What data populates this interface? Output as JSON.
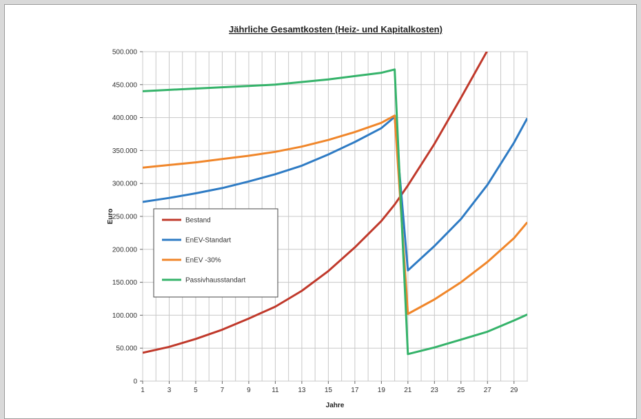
{
  "chart_data": {
    "type": "line",
    "title": "Jährliche Gesamtkosten (Heiz- und Kapitalkosten)",
    "xlabel": "Jahre",
    "ylabel": "Euro",
    "xlim": [
      1,
      30
    ],
    "ylim": [
      0,
      500000
    ],
    "x_ticks": [
      "1",
      "3",
      "5",
      "7",
      "9",
      "11",
      "13",
      "15",
      "17",
      "19",
      "21",
      "23",
      "25",
      "27",
      "29"
    ],
    "y_ticks": [
      "0",
      "50.000",
      "100.000",
      "150.000",
      "200.000",
      "250.000",
      "300.000",
      "350.000",
      "400.000",
      "450.000",
      "500.000"
    ],
    "grid": true,
    "legend_position": "left-middle",
    "series": [
      {
        "name": "Bestand",
        "color": "#c0392b",
        "x": [
          1,
          3,
          5,
          7,
          9,
          11,
          13,
          15,
          17,
          19,
          20,
          21,
          23,
          25,
          27
        ],
        "y": [
          43000,
          52000,
          64000,
          78000,
          95000,
          113000,
          137000,
          167000,
          203000,
          243000,
          268000,
          297000,
          360000,
          430000,
          502000
        ]
      },
      {
        "name": "EnEV-Standart",
        "color": "#2e7bc4",
        "x": [
          1,
          3,
          5,
          7,
          9,
          11,
          13,
          15,
          17,
          19,
          20,
          21,
          23,
          25,
          27,
          29,
          30
        ],
        "y": [
          272000,
          278000,
          285000,
          293000,
          303000,
          314000,
          327000,
          344000,
          363000,
          384000,
          401000,
          168000,
          205000,
          246000,
          298000,
          362000,
          399000
        ]
      },
      {
        "name": "EnEV -30%",
        "color": "#f0862a",
        "x": [
          1,
          3,
          5,
          7,
          9,
          11,
          13,
          15,
          17,
          19,
          20,
          21,
          23,
          25,
          27,
          29,
          30
        ],
        "y": [
          324000,
          328000,
          332000,
          337000,
          342000,
          348000,
          356000,
          366000,
          378000,
          392000,
          403000,
          102000,
          124000,
          150000,
          181000,
          217000,
          241000
        ]
      },
      {
        "name": "Passivhausstandart",
        "color": "#35b36a",
        "x": [
          1,
          3,
          5,
          7,
          9,
          11,
          13,
          15,
          17,
          19,
          20,
          21,
          23,
          25,
          27,
          29,
          30
        ],
        "y": [
          440000,
          442000,
          444000,
          446000,
          448000,
          450000,
          454000,
          458000,
          463000,
          468000,
          473000,
          41000,
          51000,
          63000,
          75000,
          92000,
          101000
        ]
      }
    ]
  }
}
